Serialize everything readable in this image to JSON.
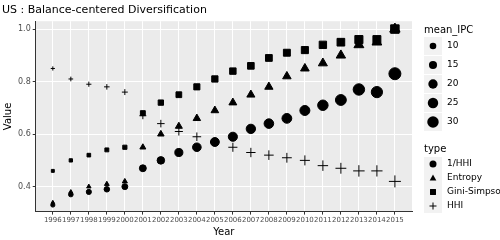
{
  "chart_data": {
    "type": "scatter",
    "title": "US : Balance-centered Diversification",
    "x_label": "Year",
    "y_label": "Value",
    "x": [
      1996,
      1997,
      1998,
      1999,
      2000,
      2001,
      2002,
      2003,
      2004,
      2005,
      2006,
      2007,
      2008,
      2009,
      2010,
      2011,
      2012,
      2013,
      2014,
      2015
    ],
    "mean_IPC": [
      4,
      5,
      6,
      7,
      8,
      11,
      13,
      15,
      17,
      18,
      19,
      20,
      21,
      22,
      23,
      25,
      27,
      30,
      29,
      33
    ],
    "series": [
      {
        "name": "1/HHI",
        "color": "#000000",
        "marker": "circle",
        "values": [
          0.33,
          0.37,
          0.38,
          0.39,
          0.4,
          0.47,
          0.5,
          0.53,
          0.55,
          0.57,
          0.59,
          0.62,
          0.64,
          0.66,
          0.69,
          0.71,
          0.73,
          0.77,
          0.76,
          0.83
        ]
      },
      {
        "name": "Entropy",
        "color": "#000000",
        "marker": "triangle",
        "values": [
          0.34,
          0.38,
          0.4,
          0.41,
          0.42,
          0.55,
          0.6,
          0.63,
          0.66,
          0.69,
          0.72,
          0.75,
          0.78,
          0.82,
          0.85,
          0.87,
          0.9,
          0.94,
          0.95,
          1.0
        ]
      },
      {
        "name": "Gini-Simpson",
        "color": "#000000",
        "marker": "square",
        "values": [
          0.46,
          0.5,
          0.52,
          0.54,
          0.55,
          0.68,
          0.72,
          0.75,
          0.78,
          0.81,
          0.84,
          0.86,
          0.89,
          0.91,
          0.92,
          0.94,
          0.95,
          0.96,
          0.96,
          1.0
        ]
      },
      {
        "name": "HHI",
        "color": "#000000",
        "marker": "plus",
        "values": [
          0.85,
          0.81,
          0.79,
          0.78,
          0.76,
          0.67,
          0.64,
          0.61,
          0.59,
          0.57,
          0.55,
          0.53,
          0.52,
          0.51,
          0.5,
          0.48,
          0.47,
          0.46,
          0.46,
          0.42
        ]
      }
    ],
    "xlim": [
      1995.05,
      2015.95
    ],
    "xticks": [
      1996,
      1997,
      1998,
      1999,
      2000,
      2001,
      2002,
      2003,
      2004,
      2005,
      2006,
      2007,
      2008,
      2009,
      2010,
      2011,
      2012,
      2013,
      2014,
      2015
    ],
    "ylim": [
      0.305,
      1.03
    ],
    "yticks": [
      0.4,
      0.6,
      0.8,
      {
        "value": 1,
        "label": "1.0"
      }
    ],
    "grid": true,
    "legend": "right",
    "legend_title": "type",
    "size_title": "mean_IPC",
    "size_ticks": [
      10,
      15,
      20,
      25,
      30
    ]
  }
}
